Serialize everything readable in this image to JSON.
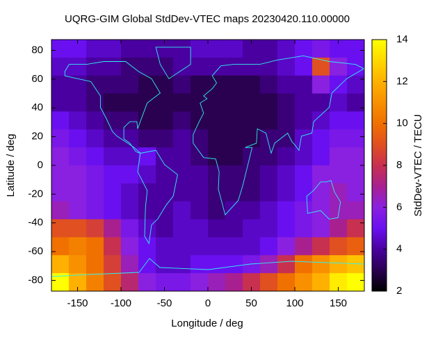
{
  "chart_data": {
    "type": "heatmap",
    "title": "UQRG-GIM Global StdDev-VTEC maps 20230420.110.00000",
    "x_label": "Longitude / deg",
    "y_label": "Latitude / deg",
    "colorbar_label": "StdDev-VTEC / TECU",
    "xlim": [
      -180,
      180
    ],
    "ylim": [
      -87.5,
      87.5
    ],
    "xticks": [
      -150,
      -100,
      -50,
      0,
      50,
      100,
      150
    ],
    "yticks": [
      -80,
      -60,
      -40,
      -20,
      0,
      20,
      40,
      60,
      80
    ],
    "zlim": [
      2,
      14
    ],
    "zticks": [
      2,
      4,
      6,
      8,
      10,
      12,
      14
    ],
    "colormap": [
      "#000000",
      "#2a0050",
      "#4a00a0",
      "#6a10f0",
      "#8a20e0",
      "#a82090",
      "#c83050",
      "#e05020",
      "#f07000",
      "#f89000",
      "#ffb000",
      "#ffd800",
      "#ffff00"
    ],
    "x": [
      -170,
      -150,
      -130,
      -110,
      -90,
      -70,
      -50,
      -30,
      -10,
      10,
      30,
      50,
      70,
      90,
      110,
      130,
      150,
      170
    ],
    "y": [
      81.25,
      68.75,
      56.25,
      43.75,
      31.25,
      18.75,
      6.25,
      -6.25,
      -18.75,
      -31.25,
      -43.75,
      -56.25,
      -68.75,
      -81.25
    ],
    "z": [
      [
        5,
        5,
        4.5,
        4.5,
        4,
        4,
        4,
        4,
        4.5,
        4.5,
        4.5,
        4,
        4,
        4.5,
        5,
        5.5,
        5,
        5
      ],
      [
        4.5,
        4.5,
        4,
        4,
        3.5,
        3.5,
        3.5,
        4,
        4,
        4,
        4,
        4,
        4,
        4.5,
        5,
        9,
        6,
        5
      ],
      [
        4,
        4,
        3.5,
        3.5,
        3.5,
        3,
        3,
        3.5,
        3,
        3,
        3,
        3,
        3.5,
        4,
        4,
        6,
        5,
        4.5
      ],
      [
        4,
        4,
        3.5,
        3,
        3,
        3,
        3,
        3,
        3,
        3,
        3,
        3,
        3,
        3.5,
        4,
        4,
        4.5,
        4
      ],
      [
        5,
        4.5,
        4,
        3.5,
        3.5,
        3,
        3,
        3.5,
        3,
        3,
        3,
        3,
        3,
        3.5,
        4,
        4.5,
        5,
        5
      ],
      [
        5.5,
        5,
        4.5,
        4,
        4,
        3.5,
        3.5,
        4,
        3.5,
        3,
        3,
        3,
        3.5,
        3.5,
        4.5,
        5,
        5.5,
        5.5
      ],
      [
        6,
        5.5,
        5,
        4.5,
        4.5,
        5,
        4,
        4,
        3.5,
        3,
        3,
        3.5,
        3.5,
        4,
        4.5,
        5,
        6,
        6
      ],
      [
        6,
        6,
        5.5,
        5,
        5,
        4.5,
        4,
        4,
        4,
        3.5,
        3.5,
        3.5,
        4,
        4.5,
        5,
        6,
        6,
        6
      ],
      [
        6,
        6,
        5.5,
        5,
        4.5,
        4,
        4,
        4,
        4,
        3.5,
        3.5,
        3.5,
        4,
        4.5,
        5,
        6,
        6.5,
        6
      ],
      [
        6.5,
        6,
        5.5,
        5,
        4.5,
        4,
        4,
        4.5,
        4,
        3.5,
        4,
        4,
        4.5,
        5,
        5.5,
        6,
        6.5,
        6.5
      ],
      [
        9,
        9,
        8.5,
        7,
        5.5,
        4.5,
        4,
        4.5,
        4.5,
        4,
        4,
        4.5,
        4.5,
        5,
        5.5,
        6,
        7,
        8
      ],
      [
        10,
        10.5,
        10,
        8,
        6,
        5,
        4.5,
        4.5,
        4.5,
        4.5,
        4.5,
        4.5,
        5,
        6,
        7,
        8,
        9,
        9.5
      ],
      [
        12,
        11,
        10,
        8.5,
        6.5,
        5,
        4.5,
        4.5,
        5,
        5,
        5,
        5.5,
        6.5,
        8,
        10,
        11,
        12,
        12.5
      ],
      [
        14,
        12,
        10.5,
        9,
        7.5,
        6,
        5.5,
        5.5,
        6,
        6.5,
        7,
        8,
        9,
        10,
        11,
        12,
        13.5,
        14
      ]
    ]
  }
}
